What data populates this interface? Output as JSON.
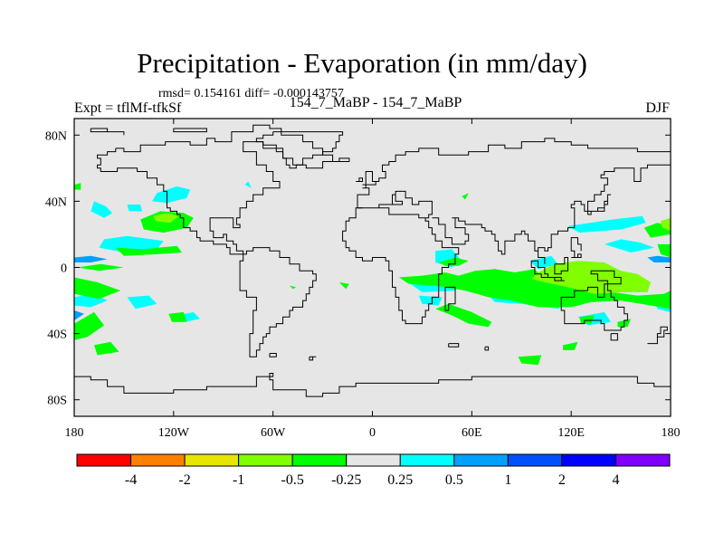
{
  "title": "Precipitation - Evaporation (in mm/day)",
  "stats": "rmsd= 0.154161 diff= -0.000143757",
  "experiment": "Expt = tflMf-tfkSf",
  "runs": "154_7_MaBP - 154_7_MaBP",
  "season": "DJF",
  "chart_data": {
    "type": "heatmap",
    "projection": "cylindrical-equidistant",
    "xlim": [
      -180,
      180
    ],
    "ylim": [
      -90,
      90
    ],
    "y_ticks": [
      {
        "value": 80,
        "label": "80N"
      },
      {
        "value": 40,
        "label": "40N"
      },
      {
        "value": 0,
        "label": "0"
      },
      {
        "value": -40,
        "label": "40S"
      },
      {
        "value": -80,
        "label": "80S"
      }
    ],
    "x_ticks": [
      {
        "value": -180,
        "label": "180"
      },
      {
        "value": -120,
        "label": "120W"
      },
      {
        "value": -60,
        "label": "60W"
      },
      {
        "value": 0,
        "label": "0"
      },
      {
        "value": 60,
        "label": "60E"
      },
      {
        "value": 120,
        "label": "120E"
      },
      {
        "value": 180,
        "label": "180"
      }
    ],
    "colorbar": {
      "colors": [
        "#ff0000",
        "#ff8000",
        "#e6e600",
        "#80ff00",
        "#00ff00",
        "#e6e6e6",
        "#00ffff",
        "#00a0ff",
        "#0050ff",
        "#0000ff",
        "#8000ff"
      ],
      "labels": [
        "-4",
        "-2",
        "-1",
        "-0.5",
        "-0.25",
        "0.25",
        "0.5",
        "1",
        "2",
        "4"
      ]
    },
    "regions": [
      {
        "level": "0.25 to 0.5",
        "color": "#00ffff",
        "polys": [
          [
            [
              -130,
              45
            ],
            [
              -118,
              49
            ],
            [
              -110,
              47
            ],
            [
              -112,
              42
            ],
            [
              -124,
              39
            ],
            [
              -133,
              40
            ]
          ],
          [
            [
              -168,
              40
            ],
            [
              -161,
              37
            ],
            [
              -157,
              33
            ],
            [
              -162,
              30
            ],
            [
              -170,
              34
            ]
          ],
          [
            [
              -148,
              38
            ],
            [
              -140,
              38
            ],
            [
              -139,
              34
            ],
            [
              -147,
              34
            ]
          ],
          [
            [
              -162,
              17
            ],
            [
              -148,
              19
            ],
            [
              -126,
              16
            ],
            [
              -130,
              11
            ],
            [
              -150,
              9
            ],
            [
              -165,
              12
            ]
          ],
          [
            [
              -180,
              -18
            ],
            [
              -168,
              -16
            ],
            [
              -160,
              -20
            ],
            [
              -170,
              -24
            ],
            [
              -180,
              -23
            ]
          ],
          [
            [
              -148,
              -18
            ],
            [
              -135,
              -17
            ],
            [
              -130,
              -22
            ],
            [
              -143,
              -25
            ]
          ],
          [
            [
              -178,
              -35
            ],
            [
              -170,
              -31
            ],
            [
              -166,
              -37
            ],
            [
              -176,
              -41
            ]
          ],
          [
            [
              -118,
              -29
            ],
            [
              -108,
              -27
            ],
            [
              -104,
              -31
            ],
            [
              -114,
              -33
            ]
          ],
          [
            [
              -77,
              50
            ],
            [
              -75,
              52
            ],
            [
              -73,
              48
            ]
          ],
          [
            [
              38,
              10
            ],
            [
              48,
              11
            ],
            [
              53,
              5
            ],
            [
              48,
              0
            ],
            [
              38,
              3
            ]
          ],
          [
            [
              23,
              -10
            ],
            [
              38,
              -7
            ],
            [
              52,
              -9
            ],
            [
              50,
              -14
            ],
            [
              30,
              -15
            ]
          ],
          [
            [
              28,
              -17
            ],
            [
              42,
              -18
            ],
            [
              40,
              -23
            ],
            [
              30,
              -22
            ]
          ],
          [
            [
              66,
              -7
            ],
            [
              80,
              -4
            ],
            [
              90,
              -8
            ],
            [
              83,
              -13
            ],
            [
              68,
              -11
            ]
          ],
          [
            [
              70,
              -17
            ],
            [
              84,
              -14
            ],
            [
              104,
              -16
            ],
            [
              118,
              -21
            ],
            [
              112,
              -25
            ],
            [
              90,
              -22
            ],
            [
              74,
              -21
            ]
          ],
          [
            [
              95,
              4
            ],
            [
              108,
              7
            ],
            [
              112,
              2
            ],
            [
              100,
              -1
            ]
          ],
          [
            [
              118,
              25
            ],
            [
              145,
              29
            ],
            [
              163,
              31
            ],
            [
              165,
              27
            ],
            [
              150,
              23
            ],
            [
              125,
              21
            ]
          ],
          [
            [
              140,
              14
            ],
            [
              150,
              17
            ],
            [
              162,
              15
            ],
            [
              170,
              12
            ],
            [
              156,
              9
            ]
          ],
          [
            [
              124,
              -30
            ],
            [
              140,
              -27
            ],
            [
              144,
              -33
            ],
            [
              130,
              -35
            ]
          ],
          [
            [
              170,
              -20
            ],
            [
              180,
              -17
            ],
            [
              180,
              -27
            ],
            [
              172,
              -25
            ]
          ]
        ]
      },
      {
        "level": "0.5 to 1",
        "color": "#00a0ff",
        "polys": [
          [
            [
              -180,
              6
            ],
            [
              -170,
              7
            ],
            [
              -160,
              5
            ],
            [
              -170,
              3
            ],
            [
              -180,
              3
            ]
          ],
          [
            [
              -180,
              -26
            ],
            [
              -174,
              -28
            ],
            [
              -180,
              -32
            ]
          ],
          [
            [
              166,
              6
            ],
            [
              172,
              7
            ],
            [
              180,
              6
            ],
            [
              180,
              3
            ],
            [
              170,
              3
            ]
          ]
        ]
      },
      {
        "level": "-0.5 to -0.25",
        "color": "#00ff00",
        "polys": [
          [
            [
              -180,
              50
            ],
            [
              -176,
              51
            ],
            [
              -176,
              47
            ],
            [
              -180,
              47
            ]
          ],
          [
            [
              -140,
              29
            ],
            [
              -128,
              34
            ],
            [
              -114,
              33
            ],
            [
              -108,
              30
            ],
            [
              -112,
              24
            ],
            [
              -126,
              21
            ],
            [
              -138,
              23
            ]
          ],
          [
            [
              -155,
              12
            ],
            [
              -139,
              11
            ],
            [
              -118,
              13
            ],
            [
              -115,
              9
            ],
            [
              -130,
              8
            ],
            [
              -150,
              7
            ]
          ],
          [
            [
              -178,
              0
            ],
            [
              -164,
              2
            ],
            [
              -150,
              0
            ],
            [
              -165,
              -2
            ]
          ],
          [
            [
              -180,
              -6
            ],
            [
              -166,
              -9
            ],
            [
              -152,
              -14
            ],
            [
              -165,
              -19
            ],
            [
              -180,
              -16
            ]
          ],
          [
            [
              -180,
              -34
            ],
            [
              -168,
              -27
            ],
            [
              -162,
              -35
            ],
            [
              -172,
              -42
            ],
            [
              -180,
              -44
            ]
          ],
          [
            [
              -168,
              -47
            ],
            [
              -158,
              -45
            ],
            [
              -153,
              -51
            ],
            [
              -166,
              -53
            ]
          ],
          [
            [
              -123,
              -28
            ],
            [
              -114,
              -27
            ],
            [
              -112,
              -33
            ],
            [
              -121,
              -33
            ]
          ],
          [
            [
              -50,
              -11
            ],
            [
              -46,
              -12
            ],
            [
              -48,
              -13
            ]
          ],
          [
            [
              16,
              -6
            ],
            [
              30,
              -5
            ],
            [
              44,
              -3
            ],
            [
              52,
              -5
            ],
            [
              62,
              -2
            ],
            [
              74,
              -1
            ],
            [
              86,
              -3
            ],
            [
              98,
              -1
            ],
            [
              104,
              -8
            ],
            [
              118,
              -10
            ],
            [
              128,
              -13
            ],
            [
              145,
              -15
            ],
            [
              160,
              -17
            ],
            [
              176,
              -16
            ],
            [
              180,
              -14
            ],
            [
              180,
              -25
            ],
            [
              168,
              -23
            ],
            [
              150,
              -20
            ],
            [
              132,
              -21
            ],
            [
              120,
              -24
            ],
            [
              100,
              -24
            ],
            [
              84,
              -20
            ],
            [
              70,
              -18
            ],
            [
              56,
              -14
            ],
            [
              38,
              -11
            ],
            [
              22,
              -10
            ]
          ],
          [
            [
              38,
              -25
            ],
            [
              48,
              -29
            ],
            [
              58,
              -34
            ],
            [
              70,
              -36
            ],
            [
              72,
              -33
            ],
            [
              60,
              -27
            ],
            [
              46,
              -22
            ]
          ],
          [
            [
              40,
              3
            ],
            [
              50,
              6
            ],
            [
              58,
              4
            ],
            [
              52,
              1
            ],
            [
              44,
              1
            ]
          ],
          [
            [
              54,
              43
            ],
            [
              58,
              45
            ],
            [
              56,
              41
            ]
          ],
          [
            [
              120,
              3
            ],
            [
              136,
              3
            ],
            [
              140,
              -3
            ],
            [
              126,
              -4
            ]
          ],
          [
            [
              88,
              -54
            ],
            [
              102,
              -53
            ],
            [
              100,
              -59
            ],
            [
              90,
              -58
            ]
          ],
          [
            [
              115,
              -47
            ],
            [
              124,
              -45
            ],
            [
              122,
              -50
            ],
            [
              115,
              -50
            ]
          ],
          [
            [
              125,
              -30
            ],
            [
              134,
              -29
            ],
            [
              132,
              -34
            ],
            [
              126,
              -34
            ]
          ],
          [
            [
              148,
              -33
            ],
            [
              156,
              -31
            ],
            [
              154,
              -36
            ],
            [
              148,
              -36
            ]
          ],
          [
            [
              164,
              24
            ],
            [
              172,
              27
            ],
            [
              180,
              25
            ],
            [
              180,
              20
            ],
            [
              168,
              18
            ]
          ],
          [
            [
              172,
              14
            ],
            [
              180,
              14
            ],
            [
              180,
              6
            ],
            [
              174,
              8
            ]
          ],
          [
            [
              -20,
              -9
            ],
            [
              -14,
              -10
            ],
            [
              -16,
              -13
            ]
          ]
        ]
      },
      {
        "level": "-1 to -0.5",
        "color": "#80ff00",
        "polys": [
          [
            [
              -132,
              31
            ],
            [
              -124,
              33
            ],
            [
              -117,
              31
            ],
            [
              -122,
              27
            ],
            [
              -131,
              28
            ]
          ],
          [
            [
              100,
              -3
            ],
            [
              110,
              2
            ],
            [
              124,
              4
            ],
            [
              140,
              3
            ],
            [
              150,
              -2
            ],
            [
              160,
              -4
            ],
            [
              168,
              -9
            ],
            [
              166,
              -15
            ],
            [
              150,
              -15
            ],
            [
              134,
              -16
            ],
            [
              118,
              -12
            ],
            [
              104,
              -9
            ],
            [
              96,
              -7
            ]
          ],
          [
            [
              174,
              28
            ],
            [
              180,
              30
            ],
            [
              180,
              22
            ],
            [
              175,
              24
            ]
          ]
        ]
      }
    ]
  }
}
